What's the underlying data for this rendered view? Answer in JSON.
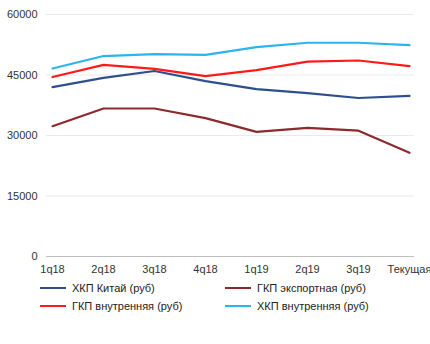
{
  "chart_data": {
    "type": "line",
    "categories": [
      "1q18",
      "2q18",
      "3q18",
      "4q18",
      "1q19",
      "2q19",
      "3q19",
      "Текущая"
    ],
    "series": [
      {
        "name": "ХКП Китай (руб)",
        "color": "#2f4e8c",
        "values": [
          42000,
          44300,
          46000,
          43500,
          41500,
          40500,
          39300,
          39800
        ]
      },
      {
        "name": "ГКП экспортная (руб)",
        "color": "#8c2a2e",
        "values": [
          32300,
          36700,
          36700,
          34300,
          30900,
          31900,
          31200,
          25700
        ]
      },
      {
        "name": "ГКП внутренняя (руб)",
        "color": "#ff1a1a",
        "values": [
          44500,
          47500,
          46500,
          44700,
          46200,
          48300,
          48600,
          47200
        ]
      },
      {
        "name": "ХКП внутренняя (руб)",
        "color": "#2eb4ec",
        "values": [
          46600,
          49700,
          50200,
          50000,
          51900,
          53000,
          53000,
          52400
        ]
      }
    ],
    "ylim": [
      0,
      60000
    ],
    "yticks": [
      0,
      15000,
      30000,
      45000,
      60000
    ],
    "grid": true,
    "legend": "bottom"
  }
}
